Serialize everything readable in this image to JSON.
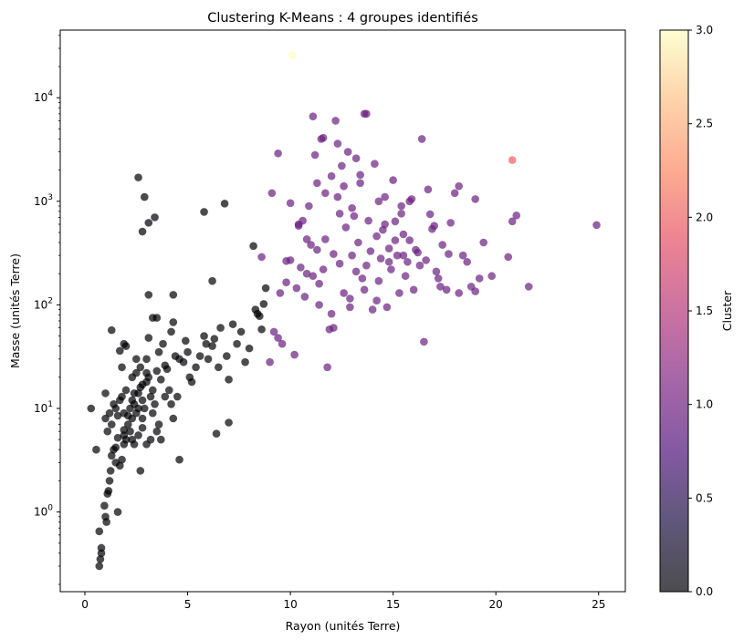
{
  "chart_data": {
    "type": "scatter",
    "title": "Clustering K-Means : 4 groupes identifiés",
    "xlabel": "Rayon (unités Terre)",
    "ylabel": "Masse (unités Terre)",
    "xlim": [
      -1.2,
      26.3
    ],
    "ylim": [
      0.17,
      45000
    ],
    "yscale": "log",
    "grid": false,
    "x_ticks": [
      0,
      5,
      10,
      15,
      20,
      25
    ],
    "x_tick_labels": [
      "0",
      "5",
      "10",
      "15",
      "20",
      "25"
    ],
    "y_ticks": [
      1,
      10,
      100,
      1000,
      10000
    ],
    "y_tick_labels": [
      "10^0",
      "10^1",
      "10^2",
      "10^3",
      "10^4"
    ],
    "colorbar": {
      "label": "Cluster",
      "range": [
        0,
        3
      ],
      "ticks": [
        0.0,
        0.5,
        1.0,
        1.5,
        2.0,
        2.5,
        3.0
      ],
      "tick_labels": [
        "0.0",
        "0.5",
        "1.0",
        "1.5",
        "2.0",
        "2.5",
        "3.0"
      ],
      "colormap": "magma",
      "colors": [
        "#000004",
        "#3b0f70",
        "#8c2981",
        "#de4968",
        "#fe9f6d",
        "#fcfdbf"
      ]
    },
    "series": [
      {
        "cluster": 0,
        "color": "#000004",
        "points": [
          [
            0.3,
            10
          ],
          [
            0.55,
            4
          ],
          [
            0.7,
            0.65
          ],
          [
            0.8,
            0.45
          ],
          [
            0.75,
            0.35
          ],
          [
            0.7,
            0.3
          ],
          [
            0.8,
            0.4
          ],
          [
            0.95,
            1.15
          ],
          [
            1.0,
            0.9
          ],
          [
            1.05,
            0.8
          ],
          [
            1.1,
            1.5
          ],
          [
            1.15,
            1.6
          ],
          [
            1.2,
            2.0
          ],
          [
            1.25,
            2.5
          ],
          [
            1.3,
            3.5
          ],
          [
            1.4,
            4.0
          ],
          [
            1.5,
            4.2
          ],
          [
            1.6,
            1.0
          ],
          [
            1.5,
            3.0
          ],
          [
            1.7,
            2.8
          ],
          [
            1.8,
            3.2
          ],
          [
            1.9,
            4.5
          ],
          [
            2.0,
            5.0
          ],
          [
            1.0,
            8
          ],
          [
            1.1,
            6
          ],
          [
            1.2,
            9
          ],
          [
            1.3,
            7
          ],
          [
            1.4,
            11
          ],
          [
            1.5,
            10
          ],
          [
            1.6,
            8.5
          ],
          [
            1.7,
            12
          ],
          [
            1.8,
            13
          ],
          [
            1.9,
            9
          ],
          [
            2.0,
            15
          ],
          [
            2.1,
            7
          ],
          [
            2.2,
            10
          ],
          [
            2.3,
            8
          ],
          [
            2.4,
            11
          ],
          [
            2.5,
            9
          ],
          [
            2.6,
            14
          ],
          [
            2.7,
            16
          ],
          [
            2.8,
            12
          ],
          [
            2.9,
            10
          ],
          [
            3.0,
            18
          ],
          [
            3.1,
            20
          ],
          [
            3.2,
            13
          ],
          [
            2.2,
            6
          ],
          [
            2.3,
            5
          ],
          [
            2.4,
            4.5
          ],
          [
            2.6,
            5.5
          ],
          [
            2.8,
            6.5
          ],
          [
            3.0,
            4.5
          ],
          [
            3.2,
            5
          ],
          [
            3.5,
            6
          ],
          [
            3.7,
            5
          ],
          [
            2.7,
            2.5
          ],
          [
            4.6,
            3.2
          ],
          [
            1.0,
            14
          ],
          [
            1.3,
            57
          ],
          [
            1.7,
            36
          ],
          [
            1.8,
            25
          ],
          [
            1.9,
            42
          ],
          [
            2.0,
            40
          ],
          [
            2.3,
            20
          ],
          [
            2.5,
            22
          ],
          [
            2.7,
            25
          ],
          [
            3.0,
            30
          ],
          [
            3.1,
            48
          ],
          [
            3.3,
            75
          ],
          [
            3.1,
            125
          ],
          [
            3.6,
            35
          ],
          [
            3.8,
            42
          ],
          [
            4.0,
            24
          ],
          [
            4.2,
            55
          ],
          [
            4.3,
            68
          ],
          [
            4.4,
            32
          ],
          [
            4.6,
            30
          ],
          [
            4.8,
            28
          ],
          [
            4.9,
            45
          ],
          [
            5.0,
            35
          ],
          [
            5.1,
            20
          ],
          [
            5.2,
            18
          ],
          [
            5.4,
            25
          ],
          [
            5.6,
            32
          ],
          [
            5.8,
            50
          ],
          [
            5.9,
            42
          ],
          [
            6.0,
            30
          ],
          [
            6.2,
            40
          ],
          [
            6.3,
            47
          ],
          [
            6.5,
            25
          ],
          [
            6.6,
            60
          ],
          [
            6.9,
            32
          ],
          [
            7.0,
            19
          ],
          [
            7.2,
            65
          ],
          [
            7.4,
            42
          ],
          [
            7.6,
            55
          ],
          [
            7.8,
            28
          ],
          [
            8.0,
            38
          ],
          [
            8.3,
            90
          ],
          [
            8.4,
            82
          ],
          [
            8.5,
            78
          ],
          [
            8.6,
            58
          ],
          [
            8.7,
            102
          ],
          [
            8.8,
            145
          ],
          [
            8.2,
            370
          ],
          [
            6.2,
            170
          ],
          [
            6.4,
            5.7
          ],
          [
            7.0,
            7.3
          ],
          [
            3.5,
            75
          ],
          [
            4.3,
            125
          ],
          [
            2.6,
            1700
          ],
          [
            2.9,
            1100
          ],
          [
            3.1,
            620
          ],
          [
            3.4,
            700
          ],
          [
            2.8,
            510
          ],
          [
            5.8,
            790
          ],
          [
            6.8,
            950
          ],
          [
            1.6,
            5.2
          ],
          [
            1.9,
            6.2
          ],
          [
            2.1,
            8.5
          ],
          [
            2.3,
            12
          ],
          [
            2.4,
            14
          ],
          [
            2.6,
            10
          ],
          [
            2.8,
            8
          ],
          [
            3.3,
            9
          ],
          [
            3.4,
            11
          ],
          [
            3.6,
            7
          ],
          [
            3.9,
            13
          ],
          [
            4.1,
            15
          ],
          [
            4.3,
            8
          ],
          [
            2.5,
            30
          ],
          [
            2.8,
            17
          ],
          [
            3.0,
            22
          ],
          [
            3.3,
            15
          ],
          [
            3.5,
            23
          ],
          [
            3.7,
            19
          ],
          [
            3.9,
            26
          ],
          [
            4.2,
            11
          ],
          [
            4.5,
            13
          ],
          [
            1.9,
            5.5
          ]
        ]
      },
      {
        "cluster": 1,
        "color": "#6a1e7f",
        "points": [
          [
            9.0,
            28
          ],
          [
            9.2,
            55
          ],
          [
            9.4,
            48
          ],
          [
            9.6,
            42
          ],
          [
            9.8,
            265
          ],
          [
            9.5,
            130
          ],
          [
            9.8,
            165
          ],
          [
            10.0,
            270
          ],
          [
            10.2,
            33
          ],
          [
            10.3,
            145
          ],
          [
            10.4,
            600
          ],
          [
            10.5,
            230
          ],
          [
            10.6,
            650
          ],
          [
            10.7,
            120
          ],
          [
            10.8,
            200
          ],
          [
            10.9,
            900
          ],
          [
            11.0,
            380
          ],
          [
            11.1,
            190
          ],
          [
            11.2,
            2800
          ],
          [
            11.3,
            1500
          ],
          [
            11.4,
            160
          ],
          [
            11.5,
            4000
          ],
          [
            11.6,
            220
          ],
          [
            11.7,
            430
          ],
          [
            11.8,
            25
          ],
          [
            11.9,
            58
          ],
          [
            12.0,
            82
          ],
          [
            12.1,
            310
          ],
          [
            12.2,
            6000
          ],
          [
            12.3,
            1100
          ],
          [
            12.4,
            250
          ],
          [
            12.5,
            2200
          ],
          [
            12.6,
            130
          ],
          [
            12.7,
            560
          ],
          [
            12.8,
            3000
          ],
          [
            12.9,
            95
          ],
          [
            13.0,
            300
          ],
          [
            13.1,
            720
          ],
          [
            13.2,
            210
          ],
          [
            13.3,
            400
          ],
          [
            13.4,
            1500
          ],
          [
            13.5,
            180
          ],
          [
            13.6,
            7000
          ],
          [
            13.7,
            240
          ],
          [
            13.8,
            650
          ],
          [
            13.9,
            330
          ],
          [
            14.0,
            90
          ],
          [
            14.1,
            2300
          ],
          [
            14.2,
            460
          ],
          [
            14.3,
            170
          ],
          [
            14.4,
            280
          ],
          [
            14.5,
            530
          ],
          [
            14.6,
            1100
          ],
          [
            14.7,
            95
          ],
          [
            14.8,
            350
          ],
          [
            14.9,
            220
          ],
          [
            15.0,
            1600
          ],
          [
            15.1,
            640
          ],
          [
            15.2,
            300
          ],
          [
            15.3,
            130
          ],
          [
            15.4,
            900
          ],
          [
            15.5,
            480
          ],
          [
            15.6,
            190
          ],
          [
            15.7,
            260
          ],
          [
            15.8,
            420
          ],
          [
            15.9,
            1050
          ],
          [
            16.0,
            140
          ],
          [
            16.2,
            320
          ],
          [
            16.4,
            4000
          ],
          [
            16.5,
            44
          ],
          [
            16.6,
            270
          ],
          [
            16.7,
            1300
          ],
          [
            16.8,
            750
          ],
          [
            17.0,
            580
          ],
          [
            17.2,
            180
          ],
          [
            17.4,
            380
          ],
          [
            17.6,
            140
          ],
          [
            17.8,
            620
          ],
          [
            18.0,
            1200
          ],
          [
            18.2,
            1400
          ],
          [
            18.4,
            300
          ],
          [
            18.6,
            260
          ],
          [
            18.8,
            150
          ],
          [
            19.0,
            1050
          ],
          [
            19.2,
            180
          ],
          [
            19.4,
            400
          ],
          [
            20.6,
            290
          ],
          [
            20.8,
            640
          ],
          [
            21.0,
            730
          ],
          [
            21.6,
            150
          ],
          [
            24.9,
            590
          ],
          [
            8.6,
            290
          ],
          [
            9.4,
            2900
          ],
          [
            11.1,
            6600
          ],
          [
            11.6,
            4100
          ],
          [
            12.3,
            3600
          ],
          [
            9.1,
            1200
          ],
          [
            10.0,
            960
          ],
          [
            10.4,
            580
          ],
          [
            10.8,
            430
          ],
          [
            11.3,
            340
          ],
          [
            11.7,
            1200
          ],
          [
            12.0,
            1750
          ],
          [
            12.4,
            760
          ],
          [
            12.6,
            1400
          ],
          [
            13.0,
            860
          ],
          [
            13.2,
            2600
          ],
          [
            13.4,
            1800
          ],
          [
            13.7,
            7000
          ],
          [
            14.3,
            1000
          ],
          [
            14.6,
            600
          ],
          [
            15.1,
            420
          ],
          [
            15.4,
            760
          ],
          [
            15.8,
            1000
          ],
          [
            16.1,
            340
          ],
          [
            16.9,
            540
          ],
          [
            17.3,
            150
          ],
          [
            17.7,
            310
          ],
          [
            18.2,
            130
          ],
          [
            19.0,
            135
          ],
          [
            19.8,
            190
          ],
          [
            12.1,
            60
          ],
          [
            11.4,
            100
          ],
          [
            12.9,
            115
          ],
          [
            13.6,
            140
          ],
          [
            14.2,
            110
          ],
          [
            14.8,
            260
          ],
          [
            15.5,
            300
          ],
          [
            16.3,
            240
          ],
          [
            17.1,
            210
          ]
        ]
      },
      {
        "cluster": 2,
        "color": "#ec5e63",
        "points": [
          [
            20.8,
            2500
          ]
        ]
      },
      {
        "cluster": 3,
        "color": "#fcfdbf",
        "points": [
          [
            10.1,
            25800
          ]
        ]
      }
    ]
  }
}
